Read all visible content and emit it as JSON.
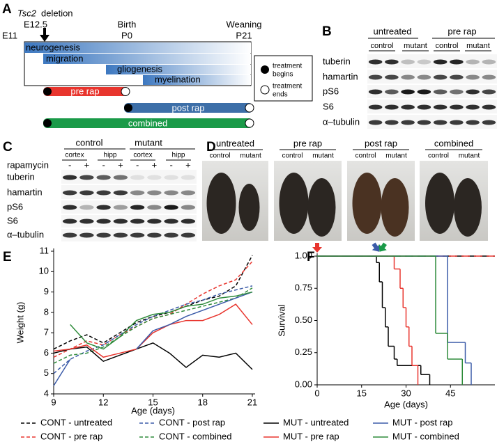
{
  "panel_a": {
    "label": "A",
    "deletion_gene": "Tsc2",
    "deletion_text": "deletion",
    "e12_5": "E12.5",
    "e11": "E11",
    "birth": "Birth",
    "p0": "P0",
    "weaning": "Weaning",
    "p21": "P21",
    "phases": [
      "neurogenesis",
      "migration",
      "gliogenesis",
      "myelination"
    ],
    "treatments": [
      "pre rap",
      "post rap",
      "combined"
    ],
    "legend": [
      [
        "treatment",
        "begins"
      ],
      [
        "treatment",
        "ends"
      ]
    ]
  },
  "panel_b": {
    "label": "B",
    "groups": [
      "untreated",
      "pre rap"
    ],
    "subgroups": [
      "control",
      "mutant",
      "control",
      "mutant"
    ],
    "rows": [
      "tuberin",
      "hamartin",
      "pS6",
      "S6",
      "α–tubulin"
    ]
  },
  "panel_c": {
    "label": "C",
    "groups": [
      "control",
      "mutant"
    ],
    "regions": [
      "cortex",
      "hipp",
      "cortex",
      "hipp"
    ],
    "treatment_label": "rapamycin",
    "signs": [
      "-",
      "+",
      "-",
      "+",
      "-",
      "+",
      "-",
      "+"
    ],
    "rows": [
      "tuberin",
      "hamartin",
      "pS6",
      "S6",
      "α–tubulin"
    ]
  },
  "panel_d": {
    "label": "D",
    "groups": [
      {
        "name": "untreated",
        "subgroups": [
          "control",
          "mutant"
        ]
      },
      {
        "name": "pre rap",
        "subgroups": [
          "control",
          "mutant"
        ]
      },
      {
        "name": "post rap",
        "subgroups": [
          "control",
          "mutant"
        ]
      },
      {
        "name": "combined",
        "subgroups": [
          "control",
          "mutant"
        ]
      }
    ]
  },
  "chart_data": [
    {
      "type": "line",
      "panel": "E",
      "y_label": "Weight (g)",
      "x_label": "Age (days)",
      "xlim": [
        9,
        21
      ],
      "ylim": [
        4,
        11
      ],
      "xticks": [
        9,
        12,
        15,
        18,
        21
      ],
      "yticks": [
        4,
        5,
        6,
        7,
        8,
        9,
        10,
        11
      ],
      "x": [
        9,
        10,
        11,
        12,
        13,
        14,
        15,
        16,
        17,
        18,
        19,
        20,
        21
      ],
      "series": [
        {
          "name": "CONT - untreated",
          "color": "#000000",
          "dashed": true,
          "values": [
            6.2,
            6.6,
            6.9,
            6.5,
            7.0,
            7.5,
            7.8,
            8.0,
            8.3,
            8.6,
            8.8,
            9.3,
            10.8
          ]
        },
        {
          "name": "CONT - pre rap",
          "color": "#e8352e",
          "dashed": true,
          "values": [
            5.8,
            6.2,
            6.6,
            6.4,
            6.9,
            7.3,
            7.7,
            7.9,
            8.4,
            8.9,
            9.3,
            9.6,
            10.5
          ]
        },
        {
          "name": "CONT - post rap",
          "color": "#3b5ba8",
          "dashed": true,
          "values": [
            5.0,
            5.7,
            6.1,
            6.4,
            6.9,
            7.4,
            7.8,
            8.1,
            8.4,
            8.6,
            8.9,
            9.1,
            9.3
          ]
        },
        {
          "name": "CONT - combined",
          "color": "#2e8b3a",
          "dashed": true,
          "values": [
            5.5,
            5.9,
            6.0,
            6.3,
            6.8,
            7.3,
            7.7,
            7.9,
            8.1,
            8.3,
            8.5,
            8.7,
            9.2
          ]
        },
        {
          "name": "MUT - untreated",
          "color": "#000000",
          "dashed": false,
          "values": [
            6.0,
            6.2,
            6.3,
            5.6,
            5.9,
            6.2,
            6.5,
            6.0,
            5.3,
            5.9,
            5.8,
            6.0,
            5.2
          ]
        },
        {
          "name": "MUT - pre rap",
          "color": "#e8352e",
          "dashed": false,
          "values": [
            6.1,
            6.2,
            6.4,
            5.8,
            6.0,
            6.2,
            7.0,
            7.4,
            7.6,
            7.6,
            7.9,
            8.4,
            7.4
          ]
        },
        {
          "name": "MUT - post rap",
          "color": "#3b5ba8",
          "dashed": false,
          "values": [
            4.4,
            5.7,
            null,
            5.8,
            null,
            6.2,
            7.1,
            7.4,
            7.8,
            8.1,
            8.4,
            8.7,
            9.0
          ]
        },
        {
          "name": "MUT - combined",
          "color": "#2e8b3a",
          "dashed": false,
          "values": [
            null,
            7.4,
            6.5,
            6.2,
            6.8,
            7.6,
            7.9,
            8.0,
            8.3,
            8.4,
            8.7,
            8.8,
            9.0
          ]
        }
      ]
    },
    {
      "type": "step",
      "panel": "F",
      "y_label": "Survival",
      "x_label": "Age (days)",
      "xlim": [
        0,
        60
      ],
      "ylim": [
        0,
        1
      ],
      "xticks": [
        0,
        15,
        30,
        45
      ],
      "yticks": [
        {
          "value": 0,
          "label": "0.00"
        },
        {
          "value": 0.25,
          "label": "0.25"
        },
        {
          "value": 0.5,
          "label": "0.50"
        },
        {
          "value": 0.75,
          "label": "0.75"
        },
        {
          "value": 1,
          "label": "1.00"
        }
      ],
      "treatment_starts": [
        {
          "x": 0,
          "color": "#e8352e"
        },
        {
          "x": 20,
          "color": "#3b5ba8"
        },
        {
          "x": 22,
          "color": "#1a9a48"
        }
      ],
      "series": [
        {
          "color": "#000000",
          "dashed": true,
          "x": [
            0,
            60
          ],
          "values": [
            1,
            1
          ]
        },
        {
          "color": "#e8352e",
          "dashed": true,
          "x": [
            0,
            60
          ],
          "values": [
            1,
            1
          ]
        },
        {
          "color": "#000000",
          "dashed": false,
          "x": [
            0,
            20,
            21,
            22,
            23,
            24,
            26,
            27,
            35,
            38
          ],
          "values": [
            1,
            0.95,
            0.8,
            0.6,
            0.45,
            0.3,
            0.2,
            0.15,
            0.08,
            0
          ]
        },
        {
          "color": "#e8352e",
          "dashed": false,
          "x": [
            0,
            26,
            28,
            29,
            30,
            31,
            32,
            34
          ],
          "values": [
            1,
            0.9,
            0.75,
            0.6,
            0.45,
            0.3,
            0.15,
            0
          ]
        },
        {
          "color": "#3b5ba8",
          "dashed": false,
          "x": [
            0,
            44,
            50,
            52
          ],
          "values": [
            1,
            0.33,
            0.17,
            0
          ]
        },
        {
          "color": "#2e8b3a",
          "dashed": false,
          "x": [
            0,
            40,
            44,
            49
          ],
          "values": [
            1,
            0.4,
            0.2,
            0
          ]
        }
      ]
    }
  ]
}
